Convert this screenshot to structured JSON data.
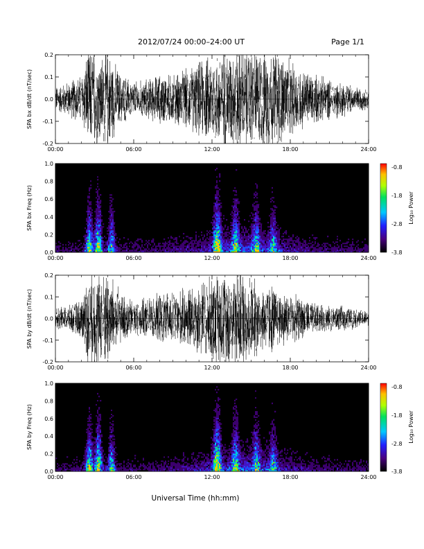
{
  "header": {
    "title": "2012/07/24  00:00–24:00 UT",
    "page": "Page 1/1"
  },
  "xlabel": "Universal Time (hh:mm)",
  "chart_data": [
    {
      "type": "line",
      "ylabel": "SPA bx dB/dt (nT/sec)",
      "xlim": [
        0,
        24
      ],
      "ylim": [
        -0.2,
        0.2
      ],
      "x_ticks": [
        "00:00",
        "06:00",
        "12:00",
        "18:00",
        "24:00"
      ],
      "y_ticks": [
        "-0.2",
        "-0.1",
        "0.0",
        "0.1",
        "0.2"
      ],
      "series": [
        {
          "x": [
            0,
            1,
            2,
            2.5,
            3,
            3.5,
            4,
            4.5,
            5,
            5.5,
            6,
            7,
            8,
            9,
            10,
            11,
            12,
            12.5,
            13,
            13.5,
            14,
            14.5,
            15,
            15.5,
            16,
            16.5,
            17,
            18,
            19,
            20,
            21,
            22,
            23,
            24
          ],
          "y": [
            0.05,
            0.07,
            0.1,
            0.2,
            0.2,
            0.18,
            0.2,
            0.15,
            0.1,
            0.09,
            0.07,
            0.08,
            0.1,
            0.1,
            0.12,
            0.15,
            0.18,
            0.2,
            0.2,
            0.2,
            0.2,
            0.2,
            0.2,
            0.2,
            0.2,
            0.2,
            0.2,
            0.15,
            0.12,
            0.1,
            0.08,
            0.07,
            0.05,
            0.04
          ]
        }
      ]
    },
    {
      "type": "heatmap",
      "ylabel": "SPA bx Freq (Hz)",
      "xlim": [
        0,
        24
      ],
      "ylim": [
        0.0,
        1.0
      ],
      "x_ticks": [
        "00:00",
        "06:00",
        "12:00",
        "18:00",
        "24:00"
      ],
      "y_ticks": [
        "0.0",
        "0.2",
        "0.4",
        "0.6",
        "0.8",
        "1.0"
      ],
      "colorbar": {
        "label": "Log₁₀ Power",
        "ticks": [
          "-0.8",
          "-1.8",
          "-2.8",
          "-3.8"
        ],
        "range": [
          -3.8,
          -0.8
        ]
      },
      "events": [
        {
          "t": 2.6,
          "strength": 0.8
        },
        {
          "t": 3.3,
          "strength": 0.9
        },
        {
          "t": 4.3,
          "strength": 0.7
        },
        {
          "t": 12.4,
          "strength": 1.0
        },
        {
          "t": 13.8,
          "strength": 0.6
        },
        {
          "t": 15.4,
          "strength": 0.55
        },
        {
          "t": 16.7,
          "strength": 0.5
        }
      ]
    },
    {
      "type": "line",
      "ylabel": "SPA by dB/dt (nT/sec)",
      "xlim": [
        0,
        24
      ],
      "ylim": [
        -0.2,
        0.2
      ],
      "x_ticks": [
        "00:00",
        "06:00",
        "12:00",
        "18:00",
        "24:00"
      ],
      "y_ticks": [
        "-0.2",
        "-0.1",
        "0.0",
        "0.1",
        "0.2"
      ],
      "series": [
        {
          "x": [
            0,
            1,
            2,
            2.5,
            3,
            3.5,
            4,
            4.5,
            5,
            5.5,
            6,
            7,
            8,
            9,
            10,
            11,
            12,
            12.5,
            13,
            13.5,
            14,
            14.5,
            15,
            15.5,
            16,
            16.5,
            17,
            18,
            19,
            20,
            21,
            22,
            23,
            24
          ],
          "y": [
            0.04,
            0.05,
            0.08,
            0.18,
            0.2,
            0.18,
            0.2,
            0.16,
            0.1,
            0.09,
            0.07,
            0.08,
            0.1,
            0.11,
            0.12,
            0.15,
            0.18,
            0.2,
            0.2,
            0.2,
            0.2,
            0.2,
            0.18,
            0.15,
            0.13,
            0.15,
            0.12,
            0.1,
            0.08,
            0.06,
            0.05,
            0.05,
            0.04,
            0.03
          ]
        }
      ]
    },
    {
      "type": "heatmap",
      "ylabel": "SPA by Freq (Hz)",
      "xlim": [
        0,
        24
      ],
      "ylim": [
        0.0,
        1.0
      ],
      "x_ticks": [
        "00:00",
        "06:00",
        "12:00",
        "18:00",
        "24:00"
      ],
      "y_ticks": [
        "0.0",
        "0.2",
        "0.4",
        "0.6",
        "0.8",
        "1.0"
      ],
      "colorbar": {
        "label": "Log₁₀ Power",
        "ticks": [
          "-0.8",
          "-1.8",
          "-2.8",
          "-3.8"
        ],
        "range": [
          -3.8,
          -0.8
        ]
      },
      "events": [
        {
          "t": 2.6,
          "strength": 0.8
        },
        {
          "t": 3.3,
          "strength": 0.9
        },
        {
          "t": 4.3,
          "strength": 0.7
        },
        {
          "t": 12.4,
          "strength": 1.0
        },
        {
          "t": 13.8,
          "strength": 0.6
        },
        {
          "t": 15.4,
          "strength": 0.55
        },
        {
          "t": 16.7,
          "strength": 0.5
        }
      ]
    }
  ]
}
